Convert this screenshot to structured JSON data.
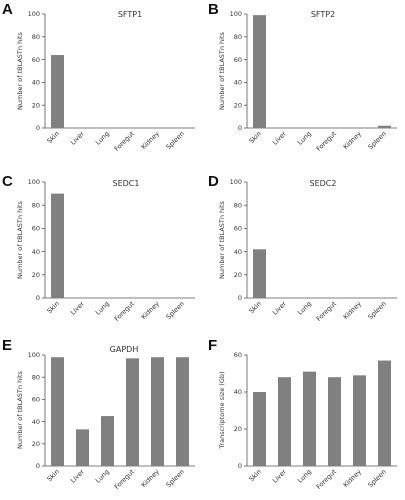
{
  "figure": {
    "panels": [
      "A",
      "B",
      "C",
      "D",
      "E",
      "F"
    ]
  },
  "chart_data": [
    {
      "type": "bar",
      "panel": "A",
      "title": "SFTP1",
      "ylabel": "Number of tBLASTn hits",
      "xlabel": "",
      "categories": [
        "Skin",
        "Liver",
        "Lung",
        "Foregut",
        "Kidney",
        "Spleen"
      ],
      "values": [
        64,
        0,
        0,
        0,
        0,
        0
      ],
      "ylim": [
        0,
        100
      ],
      "yticks": [
        0,
        20,
        40,
        60,
        80,
        100
      ],
      "bar_color": "#808080",
      "grid": false
    },
    {
      "type": "bar",
      "panel": "B",
      "title": "SFTP2",
      "ylabel": "Number of tBLASTn hits",
      "xlabel": "",
      "categories": [
        "Skin",
        "Liver",
        "Lung",
        "Foregut",
        "Kidney",
        "Spleen"
      ],
      "values": [
        99,
        0,
        0,
        0,
        0,
        2
      ],
      "ylim": [
        0,
        100
      ],
      "yticks": [
        0,
        20,
        40,
        60,
        80,
        100
      ],
      "bar_color": "#808080",
      "grid": false
    },
    {
      "type": "bar",
      "panel": "C",
      "title": "SEDC1",
      "ylabel": "Number of tBLASTn hits",
      "xlabel": "",
      "categories": [
        "Skin",
        "Liver",
        "Lung",
        "Foregut",
        "Kidney",
        "Spleen"
      ],
      "values": [
        90,
        0,
        0,
        0,
        0,
        0
      ],
      "ylim": [
        0,
        100
      ],
      "yticks": [
        0,
        20,
        40,
        60,
        80,
        100
      ],
      "bar_color": "#808080",
      "grid": false
    },
    {
      "type": "bar",
      "panel": "D",
      "title": "SEDC2",
      "ylabel": "Number of tBLASTn hits",
      "xlabel": "",
      "categories": [
        "Skin",
        "Liver",
        "Lung",
        "Foregut",
        "Kidney",
        "Spleen"
      ],
      "values": [
        42,
        0,
        0,
        0,
        0,
        0
      ],
      "ylim": [
        0,
        100
      ],
      "yticks": [
        0,
        20,
        40,
        60,
        80,
        100
      ],
      "bar_color": "#808080",
      "grid": false
    },
    {
      "type": "bar",
      "panel": "E",
      "title": "GAPDH",
      "ylabel": "Number of tBLASTn hits",
      "xlabel": "",
      "categories": [
        "Skin",
        "Liver",
        "Lung",
        "Foregut",
        "Kidney",
        "Spleen"
      ],
      "values": [
        98,
        33,
        45,
        97,
        98,
        98
      ],
      "ylim": [
        0,
        100
      ],
      "yticks": [
        0,
        20,
        40,
        60,
        80,
        100
      ],
      "bar_color": "#808080",
      "grid": false
    },
    {
      "type": "bar",
      "panel": "F",
      "title": "",
      "ylabel": "Transcriptome size (Gb)",
      "xlabel": "",
      "categories": [
        "Skin",
        "Liver",
        "Lung",
        "Foregut",
        "Kidney",
        "Spleen"
      ],
      "values": [
        40,
        48,
        51,
        48,
        49,
        57
      ],
      "ylim": [
        0,
        60
      ],
      "yticks": [
        0,
        20,
        40,
        60
      ],
      "bar_color": "#808080",
      "grid": false
    }
  ]
}
